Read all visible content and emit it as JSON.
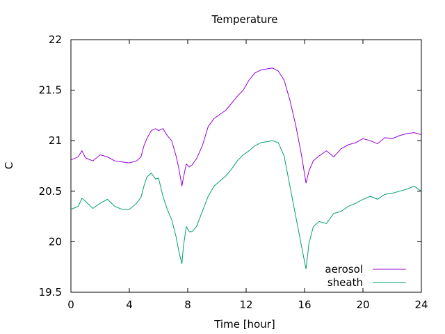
{
  "chart_data": {
    "type": "line",
    "title": "Temperature",
    "xlabel": "Time [hour]",
    "ylabel": "C",
    "xlim": [
      0,
      24
    ],
    "ylim": [
      19.5,
      22
    ],
    "xticks": [
      0,
      4,
      8,
      12,
      16,
      20,
      24
    ],
    "yticks": [
      19.5,
      20,
      20.5,
      21,
      21.5,
      22
    ],
    "xtick_labels": [
      "0",
      "4",
      "8",
      "12",
      "16",
      "20",
      "24"
    ],
    "ytick_labels": [
      "19.5",
      "20",
      "20.5",
      "21",
      "21.5",
      "22"
    ],
    "grid": false,
    "legend_position": "bottom-right",
    "series": [
      {
        "name": "aerosol",
        "color": "#9400d3",
        "x": [
          0,
          0.5,
          0.75,
          1.0,
          1.5,
          2.0,
          2.5,
          3.0,
          3.5,
          4.0,
          4.5,
          4.8,
          5.0,
          5.2,
          5.5,
          5.8,
          6.0,
          6.3,
          6.6,
          6.9,
          7.2,
          7.4,
          7.6,
          7.7,
          7.9,
          8.1,
          8.3,
          8.6,
          9.0,
          9.4,
          9.8,
          10.2,
          10.6,
          11.0,
          11.4,
          11.8,
          12.2,
          12.6,
          13.0,
          13.4,
          13.8,
          14.2,
          14.6,
          15.0,
          15.4,
          15.8,
          16.1,
          16.3,
          16.6,
          17.0,
          17.5,
          18.0,
          18.5,
          19.0,
          19.5,
          20.0,
          20.5,
          21.0,
          21.5,
          22.0,
          22.5,
          23.0,
          23.5,
          24.0
        ],
        "y": [
          20.81,
          20.84,
          20.9,
          20.83,
          20.8,
          20.86,
          20.84,
          20.8,
          20.79,
          20.78,
          20.8,
          20.84,
          20.95,
          21.02,
          21.1,
          21.12,
          21.1,
          21.12,
          21.05,
          21.0,
          20.85,
          20.72,
          20.55,
          20.63,
          20.77,
          20.74,
          20.76,
          20.82,
          20.95,
          21.14,
          21.22,
          21.26,
          21.3,
          21.37,
          21.44,
          21.5,
          21.6,
          21.67,
          21.7,
          21.71,
          21.72,
          21.69,
          21.6,
          21.4,
          21.15,
          20.85,
          20.58,
          20.7,
          20.8,
          20.85,
          20.9,
          20.84,
          20.92,
          20.96,
          20.98,
          21.02,
          21.0,
          20.97,
          21.03,
          21.02,
          21.05,
          21.07,
          21.08,
          21.06
        ]
      },
      {
        "name": "sheath",
        "color": "#009e73",
        "x": [
          0,
          0.5,
          0.75,
          1.0,
          1.5,
          2.0,
          2.5,
          3.0,
          3.5,
          4.0,
          4.5,
          4.8,
          5.0,
          5.2,
          5.5,
          5.8,
          6.0,
          6.3,
          6.6,
          6.9,
          7.2,
          7.4,
          7.6,
          7.7,
          7.9,
          8.1,
          8.3,
          8.6,
          9.0,
          9.4,
          9.8,
          10.2,
          10.6,
          11.0,
          11.4,
          11.8,
          12.2,
          12.6,
          13.0,
          13.4,
          13.8,
          14.2,
          14.6,
          15.0,
          15.4,
          15.8,
          16.1,
          16.3,
          16.6,
          17.0,
          17.5,
          18.0,
          18.5,
          19.0,
          19.5,
          20.0,
          20.5,
          21.0,
          21.5,
          22.0,
          22.5,
          23.0,
          23.5,
          24.0
        ],
        "y": [
          20.32,
          20.35,
          20.43,
          20.4,
          20.33,
          20.38,
          20.42,
          20.35,
          20.32,
          20.32,
          20.38,
          20.44,
          20.55,
          20.64,
          20.68,
          20.62,
          20.63,
          20.45,
          20.32,
          20.22,
          20.05,
          19.9,
          19.78,
          19.95,
          20.15,
          20.1,
          20.1,
          20.15,
          20.3,
          20.45,
          20.55,
          20.6,
          20.65,
          20.72,
          20.8,
          20.86,
          20.9,
          20.95,
          20.98,
          20.99,
          21.0,
          20.98,
          20.85,
          20.55,
          20.25,
          19.95,
          19.73,
          19.98,
          20.15,
          20.2,
          20.18,
          20.28,
          20.3,
          20.35,
          20.38,
          20.42,
          20.45,
          20.42,
          20.47,
          20.48,
          20.5,
          20.52,
          20.55,
          20.5
        ]
      }
    ]
  }
}
